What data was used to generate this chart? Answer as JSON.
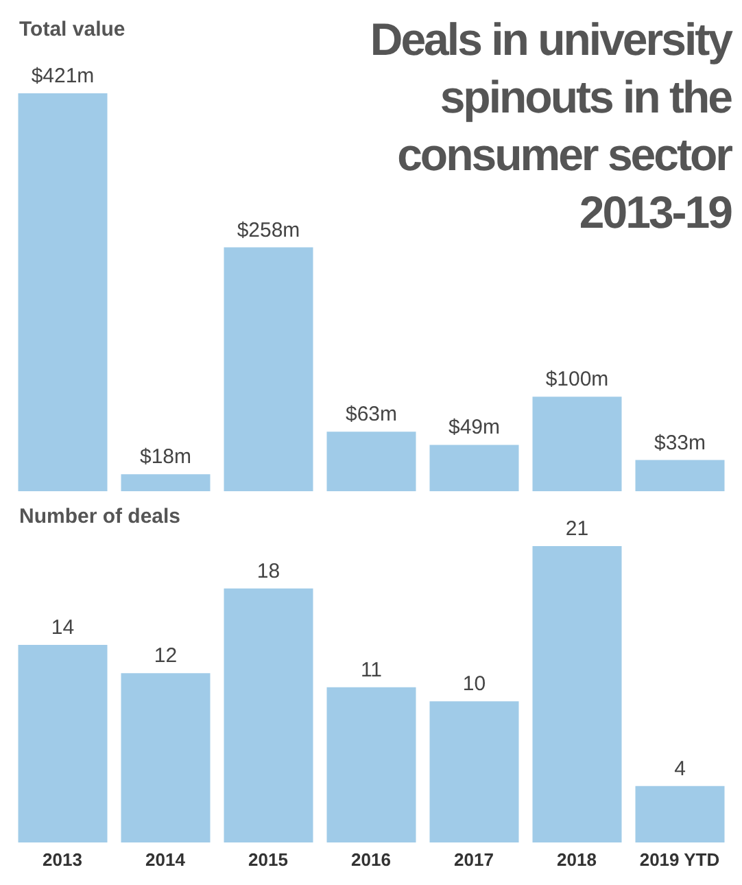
{
  "chart_data": [
    {
      "type": "bar",
      "title": "Deals in university spinouts in the consumer sector 2013-19",
      "subtitle": "Total value",
      "values": [
        421,
        18,
        258,
        63,
        49,
        100,
        33
      ],
      "value_labels": [
        "$421m",
        "$18m",
        "$258m",
        "$63m",
        "$49m",
        "$100m",
        "$33m"
      ],
      "color": "#a0cbe8",
      "tick_labels": false
    },
    {
      "type": "bar",
      "subtitle": "Number of deals",
      "categories": [
        "2013",
        "2014",
        "2015",
        "2016",
        "2017",
        "2018",
        "2019 YTD"
      ],
      "values": [
        14,
        12,
        18,
        11,
        10,
        21,
        4
      ],
      "data_labels": true,
      "color": "#a0cbe8",
      "tick_labels": "x"
    }
  ]
}
